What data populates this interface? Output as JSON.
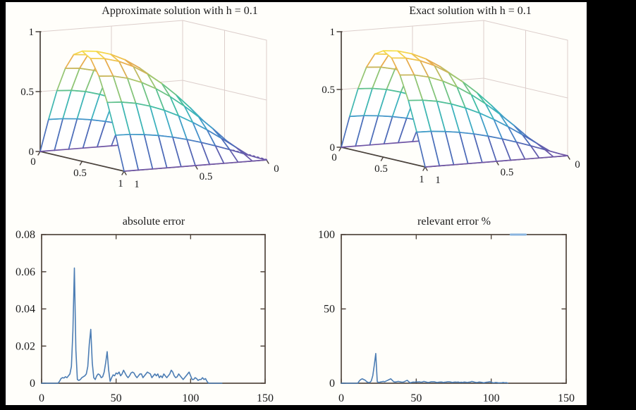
{
  "figure": {
    "background_border_color": "#000000",
    "panel_background": "#fffefa"
  },
  "style": {
    "axis_2d_color": "#52473e",
    "axis_3d_color": "#4a423c",
    "wall_grid_color": "#dccecb",
    "error_line_color": "#4c7db4",
    "top_segment_color": "#8ab4de",
    "text_color": "#1b1b1b",
    "mesh_face_color": "#ffffff",
    "mesh_colormap": [
      [
        0.0,
        "#7157a6"
      ],
      [
        0.13,
        "#4f6ab8"
      ],
      [
        0.26,
        "#4590cb"
      ],
      [
        0.38,
        "#3eb0c3"
      ],
      [
        0.5,
        "#41bda4"
      ],
      [
        0.62,
        "#6ec384"
      ],
      [
        0.74,
        "#a8c66b"
      ],
      [
        0.86,
        "#e7a94f"
      ],
      [
        1.0,
        "#f7e14d"
      ]
    ]
  },
  "chart_data": [
    {
      "type": "surface3d-mesh",
      "title": "Approximate solution with h = 0.1",
      "x_tick_labels": [
        "0",
        "0.5",
        "1"
      ],
      "y_tick_labels": [
        "1",
        "0.5",
        "0"
      ],
      "z_tick_labels": [
        "0",
        "0.5",
        "1"
      ],
      "x_range": [
        0,
        1
      ],
      "y_range": [
        0,
        1
      ],
      "z_range": [
        0,
        1
      ],
      "grid_step_h": 0.1,
      "dotted_boundary_tail": true,
      "z": [
        [
          0,
          0,
          0,
          0,
          0,
          0,
          0,
          0,
          0,
          0,
          0
        ],
        [
          0,
          0.044,
          0.088,
          0.129,
          0.167,
          0.201,
          0.23,
          0.253,
          0.27,
          0.281,
          0.284
        ],
        [
          0,
          0.084,
          0.167,
          0.246,
          0.318,
          0.383,
          0.438,
          0.482,
          0.515,
          0.534,
          0.541
        ],
        [
          0,
          0.116,
          0.23,
          0.338,
          0.437,
          0.526,
          0.602,
          0.663,
          0.708,
          0.735,
          0.744
        ],
        [
          0,
          0.137,
          0.27,
          0.397,
          0.515,
          0.619,
          0.708,
          0.78,
          0.832,
          0.864,
          0.875
        ],
        [
          0,
          0.144,
          0.284,
          0.418,
          0.541,
          0.65,
          0.744,
          0.82,
          0.875,
          0.909,
          0.92
        ],
        [
          0,
          0.137,
          0.27,
          0.397,
          0.515,
          0.619,
          0.708,
          0.78,
          0.832,
          0.864,
          0.875
        ],
        [
          0,
          0.116,
          0.23,
          0.338,
          0.437,
          0.526,
          0.602,
          0.663,
          0.708,
          0.735,
          0.744
        ],
        [
          0,
          0.084,
          0.167,
          0.246,
          0.318,
          0.383,
          0.438,
          0.482,
          0.515,
          0.534,
          0.541
        ],
        [
          0,
          0.044,
          0.088,
          0.129,
          0.167,
          0.201,
          0.23,
          0.253,
          0.27,
          0.281,
          0.284
        ],
        [
          0,
          0,
          0,
          0,
          0,
          0,
          0,
          0,
          0,
          0,
          0
        ]
      ]
    },
    {
      "type": "surface3d-mesh",
      "title": "Exact solution with h = 0.1",
      "x_tick_labels": [
        "0",
        "0.5",
        "1"
      ],
      "y_tick_labels": [
        "1",
        "0.5",
        "0"
      ],
      "z_tick_labels": [
        "0",
        "0.5",
        "1"
      ],
      "x_range": [
        0,
        1
      ],
      "y_range": [
        0,
        1
      ],
      "z_range": [
        0,
        1
      ],
      "grid_step_h": 0.1,
      "dotted_boundary_tail": false,
      "z": [
        [
          0,
          0,
          0,
          0,
          0,
          0,
          0,
          0,
          0,
          0,
          0
        ],
        [
          0,
          0.044,
          0.088,
          0.129,
          0.167,
          0.201,
          0.23,
          0.253,
          0.27,
          0.281,
          0.284
        ],
        [
          0,
          0.084,
          0.167,
          0.246,
          0.318,
          0.383,
          0.438,
          0.482,
          0.515,
          0.534,
          0.541
        ],
        [
          0,
          0.116,
          0.23,
          0.338,
          0.437,
          0.526,
          0.602,
          0.663,
          0.708,
          0.735,
          0.744
        ],
        [
          0,
          0.137,
          0.27,
          0.397,
          0.515,
          0.619,
          0.708,
          0.78,
          0.832,
          0.864,
          0.875
        ],
        [
          0,
          0.144,
          0.284,
          0.418,
          0.541,
          0.65,
          0.744,
          0.82,
          0.875,
          0.909,
          0.92
        ],
        [
          0,
          0.137,
          0.27,
          0.397,
          0.515,
          0.619,
          0.708,
          0.78,
          0.832,
          0.864,
          0.875
        ],
        [
          0,
          0.116,
          0.23,
          0.338,
          0.437,
          0.526,
          0.602,
          0.663,
          0.708,
          0.735,
          0.744
        ],
        [
          0,
          0.084,
          0.167,
          0.246,
          0.318,
          0.383,
          0.438,
          0.482,
          0.515,
          0.534,
          0.541
        ],
        [
          0,
          0.044,
          0.088,
          0.129,
          0.167,
          0.201,
          0.23,
          0.253,
          0.27,
          0.281,
          0.284
        ],
        [
          0,
          0,
          0,
          0,
          0,
          0,
          0,
          0,
          0,
          0,
          0
        ]
      ]
    },
    {
      "type": "line",
      "title": "absolute error",
      "x_ticks": [
        0,
        50,
        100,
        150
      ],
      "x_tick_labels": [
        "0",
        "50",
        "100",
        "150"
      ],
      "y_ticks": [
        0,
        0.02,
        0.04,
        0.06,
        0.08
      ],
      "y_tick_labels": [
        "0",
        "0.02",
        "0.04",
        "0.06",
        "0.08"
      ],
      "x_range": [
        0,
        150
      ],
      "y_range": [
        0,
        0.08
      ],
      "x_is_node_index": true,
      "values": [
        0,
        0,
        0,
        0,
        0,
        0,
        0,
        0,
        0,
        0,
        0,
        0,
        0.001,
        0.0025,
        0.003,
        0.0028,
        0.0035,
        0.003,
        0.004,
        0.005,
        0.009,
        0.028,
        0.062,
        0.018,
        0.002,
        0.0015,
        0.002,
        0.003,
        0.0035,
        0.004,
        0.005,
        0.009,
        0.021,
        0.029,
        0.011,
        0.003,
        0.002,
        0.004,
        0.005,
        0.0045,
        0.003,
        0.0035,
        0.006,
        0.011,
        0.017,
        0.007,
        0.001,
        0.003,
        0.0045,
        0.004,
        0.0055,
        0.005,
        0.006,
        0.004,
        0.005,
        0.007,
        0.0055,
        0.004,
        0.003,
        0.004,
        0.0055,
        0.006,
        0.0055,
        0.004,
        0.003,
        0.004,
        0.005,
        0.005,
        0.003,
        0.004,
        0.005,
        0.006,
        0.0055,
        0.005,
        0.003,
        0.004,
        0.005,
        0.004,
        0.005,
        0.003,
        0.004,
        0.003,
        0.005,
        0.004,
        0.003,
        0.004,
        0.005,
        0.007,
        0.006,
        0.004,
        0.003,
        0.0035,
        0.005,
        0.004,
        0.003,
        0.002,
        0.003,
        0.004,
        0.005,
        0.006,
        0.004,
        0.002,
        0.002,
        0.003,
        0.0025,
        0.0015,
        0.002,
        0.002,
        0.003,
        0.002,
        0.0025,
        0.001,
        0,
        0,
        0,
        0,
        0,
        0,
        0,
        0,
        0,
        0
      ]
    },
    {
      "type": "line",
      "title": "relevant error %",
      "x_ticks": [
        0,
        50,
        100,
        150
      ],
      "x_tick_labels": [
        "0",
        "50",
        "100",
        "150"
      ],
      "y_ticks": [
        0,
        50,
        100
      ],
      "y_tick_labels": [
        "0",
        "50",
        "100"
      ],
      "x_range": [
        0,
        150
      ],
      "y_range": [
        0,
        100
      ],
      "x_is_node_index": true,
      "values": [
        0,
        0,
        0,
        0,
        0,
        0,
        0,
        0,
        0,
        0,
        0,
        0,
        1.5,
        2.5,
        3,
        2.5,
        2,
        1,
        0.5,
        0.5,
        1.5,
        5,
        12,
        20,
        1,
        0.5,
        0.8,
        1,
        1.2,
        1,
        1.5,
        2,
        2.5,
        3,
        2,
        1,
        0.8,
        1,
        1.2,
        1,
        0.8,
        0.7,
        1,
        1.5,
        2,
        1,
        0.3,
        0.6,
        0.8,
        0.7,
        1,
        0.8,
        1,
        0.7,
        0.8,
        1.2,
        1,
        0.7,
        0.5,
        0.7,
        1,
        1,
        1,
        0.7,
        0.5,
        0.7,
        0.8,
        0.8,
        0.5,
        0.7,
        0.8,
        1,
        1,
        0.8,
        0.5,
        0.7,
        0.8,
        0.7,
        0.8,
        0.5,
        0.7,
        0.5,
        0.8,
        0.7,
        0.5,
        0.7,
        0.8,
        1.2,
        1,
        0.7,
        0.5,
        0.6,
        0.8,
        0.7,
        0.5,
        0.3,
        0.5,
        0.7,
        0.8,
        1,
        0.7,
        0.3,
        0.3,
        0.5,
        0.4,
        0.2,
        0.3,
        0.3,
        0.5,
        0.3,
        0.4,
        0.1
      ],
      "top_segment": {
        "x_from": 113,
        "x_to": 123,
        "y": 100
      }
    }
  ]
}
